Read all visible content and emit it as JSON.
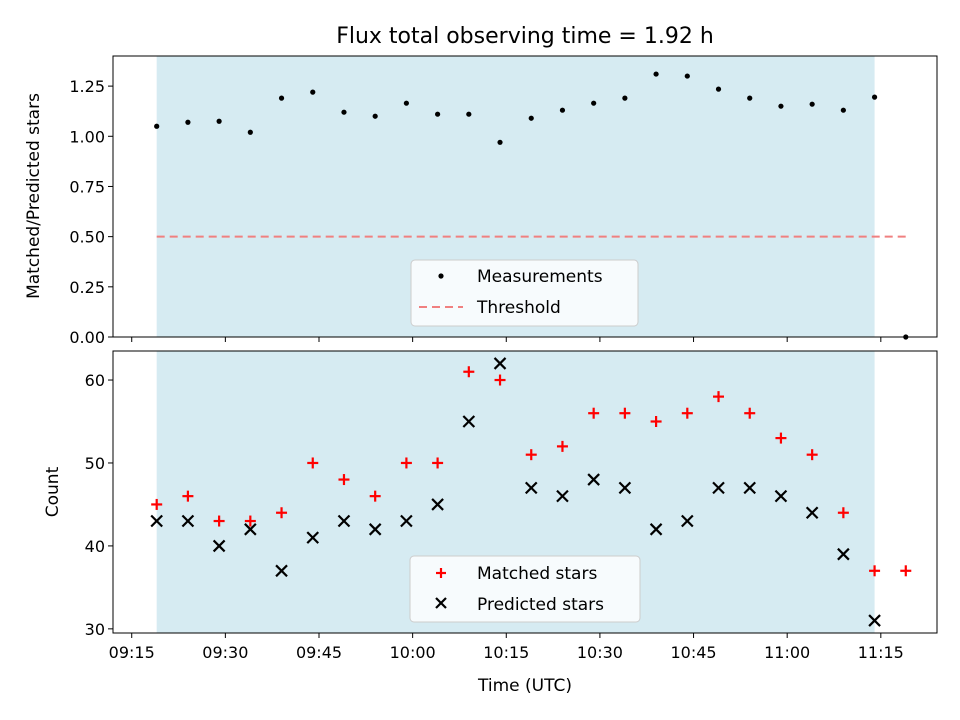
{
  "chart_data": [
    {
      "type": "scatter",
      "title": "Flux total observing time = 1.92 h",
      "xlabel": "",
      "ylabel": "Matched/Predicted stars",
      "ylim": [
        0,
        1.4
      ],
      "xlim": [
        "09:12",
        "11:24"
      ],
      "y_ticks": [
        "0.00",
        "0.25",
        "0.50",
        "0.75",
        "1.00",
        "1.25"
      ],
      "y_tick_values": [
        0,
        0.25,
        0.5,
        0.75,
        1.0,
        1.25
      ],
      "shaded_region": {
        "x_start": "09:19",
        "x_end": "11:14",
        "color": "#add8e6"
      },
      "legend_position": "lower center",
      "series": [
        {
          "name": "Measurements",
          "marker": "dot",
          "color": "#000000",
          "x": [
            "09:19",
            "09:24",
            "09:29",
            "09:34",
            "09:39",
            "09:44",
            "09:49",
            "09:54",
            "09:59",
            "10:04",
            "10:09",
            "10:14",
            "10:19",
            "10:24",
            "10:29",
            "10:34",
            "10:39",
            "10:44",
            "10:49",
            "10:54",
            "10:59",
            "11:04",
            "11:09",
            "11:14",
            "11:19"
          ],
          "values": [
            1.05,
            1.07,
            1.075,
            1.02,
            1.19,
            1.22,
            1.12,
            1.1,
            1.165,
            1.11,
            1.11,
            0.97,
            1.09,
            1.13,
            1.165,
            1.19,
            1.31,
            1.3,
            1.235,
            1.19,
            1.15,
            1.16,
            1.13,
            1.195,
            0.0
          ]
        },
        {
          "name": "Threshold",
          "marker": "dashed-line",
          "color": "#f08080",
          "x": [
            "09:19",
            "11:19"
          ],
          "values": [
            0.5,
            0.5
          ]
        }
      ]
    },
    {
      "type": "scatter",
      "title": "",
      "xlabel": "Time (UTC)",
      "ylabel": "Count",
      "ylim": [
        29.5,
        63.5
      ],
      "xlim": [
        "09:12",
        "11:24"
      ],
      "y_ticks": [
        "30",
        "40",
        "50",
        "60"
      ],
      "y_tick_values": [
        30,
        40,
        50,
        60
      ],
      "x_ticks": [
        "09:15",
        "09:30",
        "09:45",
        "10:00",
        "10:15",
        "10:30",
        "10:45",
        "11:00",
        "11:15"
      ],
      "shaded_region": {
        "x_start": "09:19",
        "x_end": "11:14",
        "color": "#add8e6"
      },
      "legend_position": "lower center",
      "series": [
        {
          "name": "Matched stars",
          "marker": "plus",
          "color": "#ff0000",
          "x": [
            "09:19",
            "09:24",
            "09:29",
            "09:34",
            "09:39",
            "09:44",
            "09:49",
            "09:54",
            "09:59",
            "10:04",
            "10:09",
            "10:14",
            "10:19",
            "10:24",
            "10:29",
            "10:34",
            "10:39",
            "10:44",
            "10:49",
            "10:54",
            "10:59",
            "11:04",
            "11:09",
            "11:14",
            "11:19"
          ],
          "values": [
            45,
            46,
            43,
            43,
            44,
            50,
            48,
            46,
            50,
            50,
            61,
            60,
            51,
            52,
            56,
            56,
            55,
            56,
            58,
            56,
            53,
            51,
            44,
            37,
            37
          ]
        },
        {
          "name": "Predicted stars",
          "marker": "x",
          "color": "#000000",
          "x": [
            "09:19",
            "09:24",
            "09:29",
            "09:34",
            "09:39",
            "09:44",
            "09:49",
            "09:54",
            "09:59",
            "10:04",
            "10:09",
            "10:14",
            "10:19",
            "10:24",
            "10:29",
            "10:34",
            "10:39",
            "10:44",
            "10:49",
            "10:54",
            "10:59",
            "11:04",
            "11:09",
            "11:14"
          ],
          "values": [
            43,
            43,
            40,
            42,
            37,
            41,
            43,
            42,
            43,
            45,
            55,
            62,
            47,
            46,
            48,
            47,
            42,
            43,
            47,
            47,
            46,
            44,
            39,
            31
          ]
        }
      ]
    }
  ]
}
